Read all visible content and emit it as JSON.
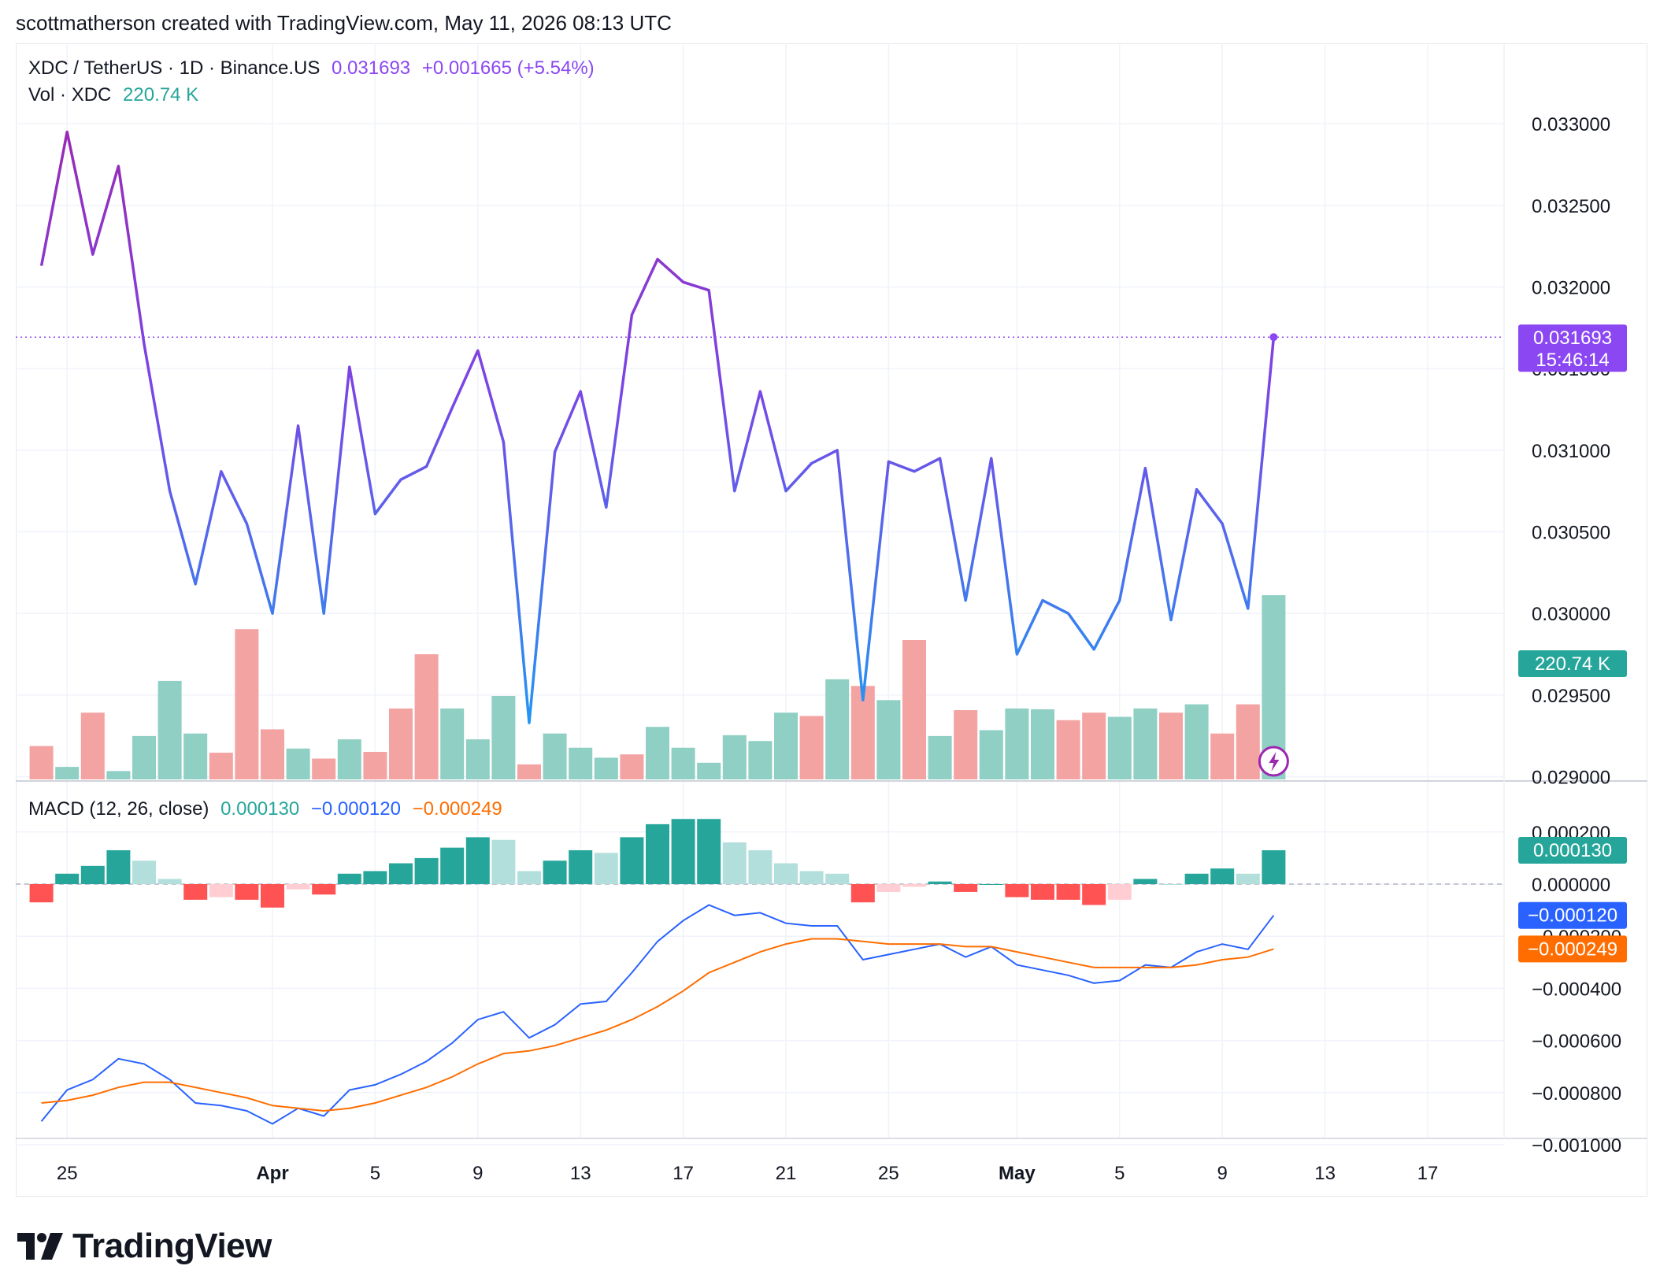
{
  "header": {
    "attribution": "scottmatherson created with TradingView.com, May 11, 2026 08:13 UTC"
  },
  "legend": {
    "symbol": "XDC / TetherUS · 1D · Binance.US",
    "last_price": "0.031693",
    "change": "+0.001665 (+5.54%)",
    "vol_label": "Vol · XDC",
    "vol_value": "220.74 K",
    "macd_label": "MACD (12, 26, close)",
    "macd_hist": "0.000130",
    "macd_line": "−0.000120",
    "macd_signal": "−0.000249"
  },
  "badges": {
    "price": "0.031693",
    "countdown": "15:46:14",
    "volume": "220.74 K",
    "hist": "0.000130",
    "macd": "−0.000120",
    "signal": "−0.000249"
  },
  "footer": {
    "brand": "TradingView"
  },
  "colors": {
    "price_top": "#9c27b0",
    "price_mid": "#7b45e6",
    "price_bottom": "#2196f3",
    "vol_up": "#8fcfc4",
    "vol_down": "#f4a3a3",
    "hist_up_strong": "#26a69a",
    "hist_up_weak": "#b2dfdb",
    "hist_down_strong": "#ff5252",
    "hist_down_weak": "#ffcdd2",
    "macd_line": "#2962ff",
    "signal_line": "#ff6d00",
    "price_badge": "#8b47f2",
    "vol_badge": "#26a69a"
  },
  "chart_data": [
    {
      "type": "line",
      "title": "XDC / TetherUS · 1D · Binance.US",
      "x": [
        "Mar 24",
        "Mar 25",
        "Mar 26",
        "Mar 27",
        "Mar 28",
        "Mar 29",
        "Mar 30",
        "Mar 31",
        "Apr 1",
        "Apr 2",
        "Apr 3",
        "Apr 4",
        "Apr 5",
        "Apr 6",
        "Apr 7",
        "Apr 8",
        "Apr 9",
        "Apr 10",
        "Apr 11",
        "Apr 12",
        "Apr 13",
        "Apr 14",
        "Apr 15",
        "Apr 16",
        "Apr 17",
        "Apr 18",
        "Apr 19",
        "Apr 20",
        "Apr 21",
        "Apr 22",
        "Apr 23",
        "Apr 24",
        "Apr 25",
        "Apr 26",
        "Apr 27",
        "Apr 28",
        "Apr 29",
        "Apr 30",
        "May 1",
        "May 2",
        "May 3",
        "May 4",
        "May 5",
        "May 6",
        "May 7",
        "May 8",
        "May 9",
        "May 10",
        "May 11"
      ],
      "series": [
        {
          "values": [
            0.03213,
            0.03295,
            0.0322,
            0.03274,
            0.03165,
            0.03075,
            0.03018,
            0.03087,
            0.03055,
            0.03,
            0.03115,
            0.03,
            0.03151,
            0.03061,
            0.03082,
            0.0309,
            0.03126,
            0.03161,
            0.03105,
            0.02933,
            0.03099,
            0.03136,
            0.03065,
            0.03183,
            0.03217,
            0.03203,
            0.03198,
            0.03075,
            0.03136,
            0.03075,
            0.03092,
            0.031,
            0.02947,
            0.03093,
            0.03087,
            0.03095,
            0.03008,
            0.03095,
            0.02975,
            0.03008,
            0.03,
            0.02978,
            0.03008,
            0.03089,
            0.02996,
            0.03076,
            0.03055,
            0.03003,
            0.031693
          ]
        }
      ],
      "ylim": [
        0.029,
        0.0331
      ],
      "y_ticks": [
        "0.033000",
        "0.032500",
        "0.032000",
        "0.031500",
        "0.031000",
        "0.030500",
        "0.030000",
        "0.029500",
        "0.029000"
      ],
      "x_ticks": [
        "25",
        "Apr",
        "5",
        "9",
        "13",
        "17",
        "21",
        "25",
        "May",
        "5",
        "9",
        "13",
        "17"
      ],
      "grid": true
    },
    {
      "type": "bar",
      "title": "Vol · XDC",
      "values": [
        40,
        15,
        80,
        10,
        52,
        118,
        55,
        32,
        180,
        60,
        37,
        25,
        48,
        33,
        85,
        150,
        85,
        48,
        100,
        18,
        55,
        38,
        26,
        30,
        63,
        38,
        20,
        53,
        46,
        80,
        76,
        120,
        112,
        95,
        167,
        52,
        83,
        59,
        85,
        84,
        71,
        80,
        75,
        85,
        80,
        90,
        55,
        90,
        220.74
      ],
      "direction": [
        "down",
        "up",
        "down",
        "up",
        "up",
        "up",
        "up",
        "down",
        "down",
        "down",
        "up",
        "down",
        "up",
        "down",
        "down",
        "down",
        "up",
        "up",
        "up",
        "down",
        "up",
        "up",
        "up",
        "down",
        "up",
        "up",
        "up",
        "up",
        "up",
        "up",
        "down",
        "up",
        "down",
        "up",
        "down",
        "up",
        "down",
        "up",
        "up",
        "up",
        "down",
        "down",
        "up",
        "up",
        "down",
        "up",
        "down",
        "down",
        "up"
      ]
    },
    {
      "type": "bar",
      "title": "MACD (12, 26, close)",
      "ylim": [
        -0.00105,
        0.00025
      ],
      "y_ticks": [
        "0.000200",
        "0.000000",
        "−0.000200",
        "−0.000400",
        "−0.000600",
        "−0.000800",
        "−0.001000"
      ],
      "histogram": [
        -7e-05,
        4e-05,
        7e-05,
        0.00013,
        9e-05,
        2e-05,
        -6e-05,
        -5e-05,
        -6e-05,
        -9e-05,
        -2e-05,
        -4e-05,
        4e-05,
        5e-05,
        8e-05,
        0.0001,
        0.00014,
        0.00018,
        0.00017,
        5e-05,
        9e-05,
        0.00013,
        0.00012,
        0.00018,
        0.00023,
        0.00025,
        0.00025,
        0.00016,
        0.00013,
        8e-05,
        5e-05,
        4e-05,
        -7e-05,
        -3e-05,
        -1e-05,
        1e-05,
        -3e-05,
        0.0,
        -5e-05,
        -6e-05,
        -6e-05,
        -8e-05,
        -6e-05,
        2e-05,
        0.0,
        4e-05,
        6e-05,
        4e-05,
        0.00013
      ],
      "series": [
        {
          "name": "MACD",
          "values": [
            -0.00091,
            -0.00079,
            -0.00075,
            -0.00067,
            -0.00069,
            -0.00075,
            -0.00084,
            -0.00085,
            -0.00087,
            -0.00092,
            -0.00086,
            -0.00089,
            -0.00079,
            -0.00077,
            -0.00073,
            -0.00068,
            -0.00061,
            -0.00052,
            -0.00049,
            -0.00059,
            -0.00054,
            -0.00046,
            -0.00045,
            -0.00034,
            -0.00022,
            -0.00014,
            -8e-05,
            -0.00012,
            -0.00011,
            -0.00015,
            -0.00016,
            -0.00016,
            -0.00029,
            -0.00027,
            -0.00025,
            -0.00023,
            -0.00028,
            -0.00024,
            -0.00031,
            -0.00033,
            -0.00035,
            -0.00038,
            -0.00037,
            -0.00031,
            -0.00032,
            -0.00026,
            -0.00023,
            -0.00025,
            -0.00012
          ]
        },
        {
          "name": "Signal",
          "values": [
            -0.00084,
            -0.00083,
            -0.00081,
            -0.00078,
            -0.00076,
            -0.00076,
            -0.00078,
            -0.0008,
            -0.00082,
            -0.00085,
            -0.00086,
            -0.00087,
            -0.00086,
            -0.00084,
            -0.00081,
            -0.00078,
            -0.00074,
            -0.00069,
            -0.00065,
            -0.00064,
            -0.00062,
            -0.00059,
            -0.00056,
            -0.00052,
            -0.00047,
            -0.00041,
            -0.00034,
            -0.0003,
            -0.00026,
            -0.00023,
            -0.00021,
            -0.00021,
            -0.00022,
            -0.00023,
            -0.00023,
            -0.00023,
            -0.00024,
            -0.00024,
            -0.00026,
            -0.00028,
            -0.0003,
            -0.00032,
            -0.00032,
            -0.00032,
            -0.00032,
            -0.00031,
            -0.00029,
            -0.00028,
            -0.000249
          ]
        }
      ]
    }
  ]
}
